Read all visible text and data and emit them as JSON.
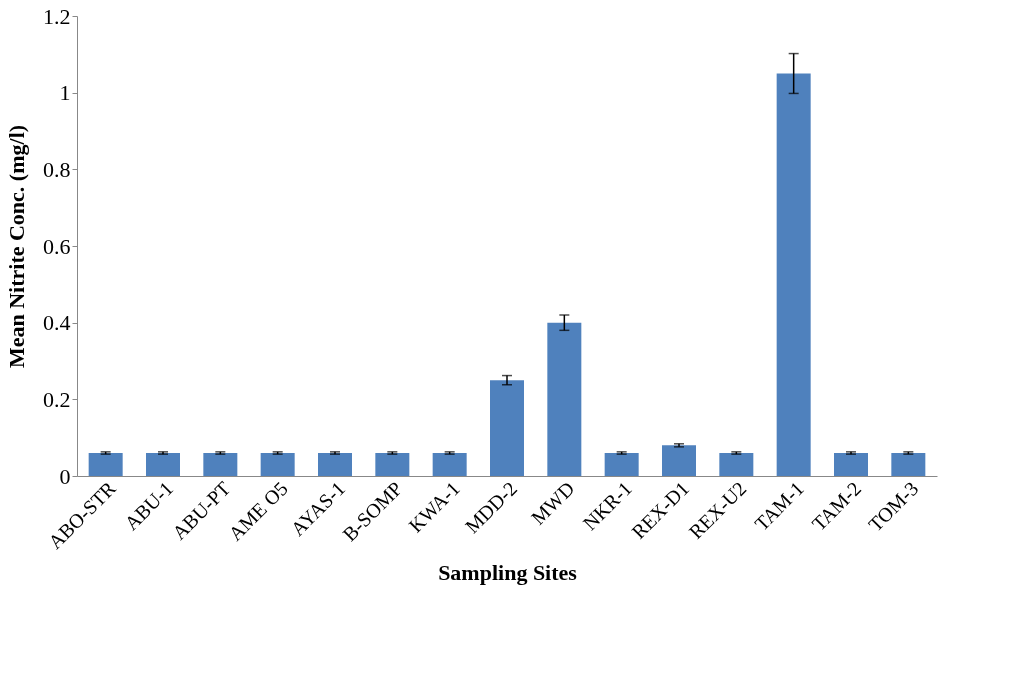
{
  "chart_data": {
    "type": "bar",
    "xlabel": "Sampling Sites",
    "ylabel": "Mean Nitrite Conc. (mg/l)",
    "categories": [
      "ABO-STR",
      "ABU-1",
      "ABU-PT",
      "AME O5",
      "AYAS-1",
      "B-SOMP",
      "KWA-1",
      "MDD-2",
      "MWD",
      "NKR-1",
      "REX-D1",
      "REX-U2",
      "TAM-1",
      "TAM-2",
      "TOM-3"
    ],
    "values": [
      0.06,
      0.06,
      0.06,
      0.06,
      0.06,
      0.06,
      0.06,
      0.25,
      0.4,
      0.06,
      0.08,
      0.06,
      1.05,
      0.06,
      0.06
    ],
    "errors": [
      0.003,
      0.003,
      0.003,
      0.003,
      0.003,
      0.003,
      0.003,
      0.012,
      0.02,
      0.003,
      0.004,
      0.003,
      0.052,
      0.003,
      0.003
    ],
    "color": "#4f81bd",
    "ylim": [
      0,
      1.2
    ],
    "yticks": [
      0,
      0.2,
      0.4,
      0.6,
      0.8,
      1,
      1.2
    ],
    "grid": false
  }
}
